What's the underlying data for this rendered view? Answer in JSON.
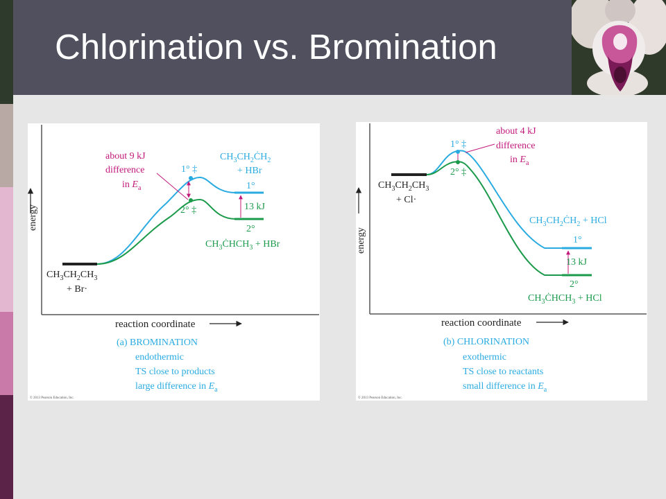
{
  "slide": {
    "title": "Chlorination vs. Bromination"
  },
  "colors": {
    "primary": "#29abe2",
    "secondary": "#1a9a4a",
    "annotation": "#c2187a",
    "reactant": "#222222",
    "title_bar": "#50505e"
  },
  "bromination": {
    "energy_label": "energy",
    "x_axis_label": "reaction coordinate",
    "caption": {
      "title": "(a) BROMINATION",
      "line1": "endothermic",
      "line2": "TS close to products",
      "line3_pre": "large difference in ",
      "ea_E": "E",
      "ea_sub": "a"
    },
    "reactants": {
      "line1": "CH",
      "sub1": "3",
      "mid1": "CH",
      "sub2": "2",
      "mid2": "CH",
      "sub3": "3",
      "line2": "+ Br·"
    },
    "ts_primary": "1° ‡",
    "ts_secondary": "2° ‡",
    "annotation": {
      "line1": "about 9 kJ",
      "line2": "difference",
      "line3": "in ",
      "ea_E": "E",
      "ea_sub": "a"
    },
    "product_primary": {
      "t1": "CH",
      "s1": "3",
      "t2": "CH",
      "s2": "2",
      "t3": "ĊH",
      "s3": "2",
      "line2": "+ HBr",
      "label": "1°"
    },
    "product_secondary": {
      "label": "2°",
      "t1": "CH",
      "s1": "3",
      "t2": "ĊHCH",
      "s2": "3",
      "tail": " + HBr"
    },
    "delta": "13 kJ",
    "copyright": "© 2013 Pearson Education, Inc."
  },
  "chlorination": {
    "energy_label": "energy",
    "x_axis_label": "reaction coordinate",
    "caption": {
      "title": "(b) CHLORINATION",
      "line1": "exothermic",
      "line2": "TS close to reactants",
      "line3_pre": "small difference in ",
      "ea_E": "E",
      "ea_sub": "a"
    },
    "reactants": {
      "line1": "CH",
      "sub1": "3",
      "mid1": "CH",
      "sub2": "2",
      "mid2": "CH",
      "sub3": "3",
      "line2": "+ Cl·"
    },
    "ts_primary": "1° ‡",
    "ts_secondary": "2° ‡",
    "annotation": {
      "line1": "about 4 kJ",
      "line2": "difference",
      "line3": "in ",
      "ea_E": "E",
      "ea_sub": "a"
    },
    "product_primary": {
      "t1": "CH",
      "s1": "3",
      "t2": "CH",
      "s2": "2",
      "t3": "ĊH",
      "s3": "2",
      "tail": " + HCl",
      "label": "1°"
    },
    "product_secondary": {
      "label": "2°",
      "t1": "CH",
      "s1": "3",
      "t2": "ĊHCH",
      "s2": "3",
      "tail": " + HCl"
    },
    "delta": "13 kJ",
    "copyright": "© 2013 Pearson Education, Inc."
  }
}
